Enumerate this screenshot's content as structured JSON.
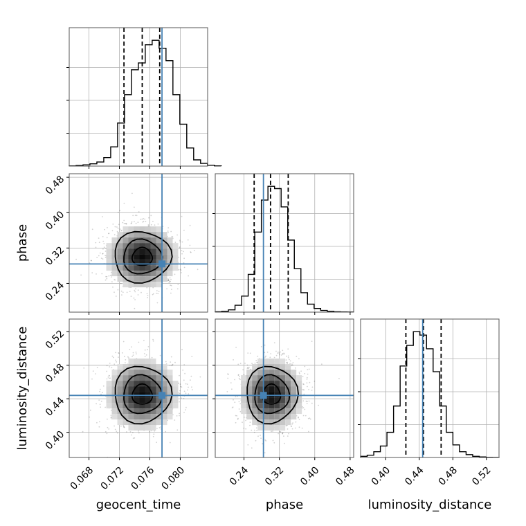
{
  "chart_data": {
    "type": "corner",
    "parameters": [
      "geocent_time",
      "phase",
      "luminosity_distance"
    ],
    "truths": {
      "geocent_time": 0.0776,
      "phase": 0.284,
      "luminosity_distance": 0.444
    },
    "colors": {
      "truth": "#4682b4",
      "hist": "#000000",
      "grid": "#b0b0b0"
    },
    "ranges": {
      "geocent_time": [
        0.0654,
        0.0836
      ],
      "phase": [
        0.175,
        0.488
      ],
      "luminosity_distance": [
        0.37,
        0.535
      ]
    },
    "ticks": {
      "geocent_time": [
        "0.068",
        "0.072",
        "0.076",
        "0.080"
      ],
      "phase": [
        "0.24",
        "0.32",
        "0.40",
        "0.48"
      ],
      "luminosity_distance": [
        "0.40",
        "0.44",
        "0.48",
        "0.52"
      ]
    },
    "marginals": [
      {
        "param": "geocent_time",
        "quantiles": [
          0.0726,
          0.075,
          0.0773
        ],
        "bin_edges_start": 0.0654,
        "bin_width": 0.000909,
        "counts": [
          0.2,
          0.6,
          1.1,
          2.0,
          3.6,
          7.5,
          17,
          38,
          63,
          85,
          91,
          107,
          111,
          104,
          93,
          63,
          37,
          16,
          5.5,
          2.4,
          0.8,
          0.2
        ]
      },
      {
        "param": "phase",
        "quantiles": [
          0.263,
          0.3,
          0.34
        ],
        "bin_edges_start": 0.175,
        "bin_width": 0.0149,
        "counts": [
          0.3,
          0.8,
          2,
          6,
          14,
          33,
          70,
          98,
          110,
          108,
          92,
          63,
          38,
          17,
          7,
          3.2,
          1.5,
          0.8,
          0.3,
          0.2,
          0.1
        ]
      },
      {
        "param": "luminosity_distance",
        "quantiles": [
          0.424,
          0.445,
          0.466
        ],
        "bin_edges_start": 0.37,
        "bin_width": 0.00786,
        "counts": [
          1,
          2,
          5,
          10,
          22,
          45,
          80,
          98,
          110,
          107,
          95,
          75,
          45,
          22,
          11,
          5,
          2.5,
          1,
          0.5,
          0.2,
          0.1
        ]
      }
    ],
    "joint": [
      {
        "x": "geocent_time",
        "y": "phase",
        "peak": [
          0.075,
          0.3
        ],
        "sd": [
          0.0022,
          0.034
        ]
      },
      {
        "x": "geocent_time",
        "y": "luminosity_distance",
        "peak": [
          0.075,
          0.445
        ],
        "sd": [
          0.0022,
          0.02
        ]
      },
      {
        "x": "phase",
        "y": "luminosity_distance",
        "peak": [
          0.302,
          0.445
        ],
        "sd": [
          0.034,
          0.02
        ]
      }
    ]
  }
}
